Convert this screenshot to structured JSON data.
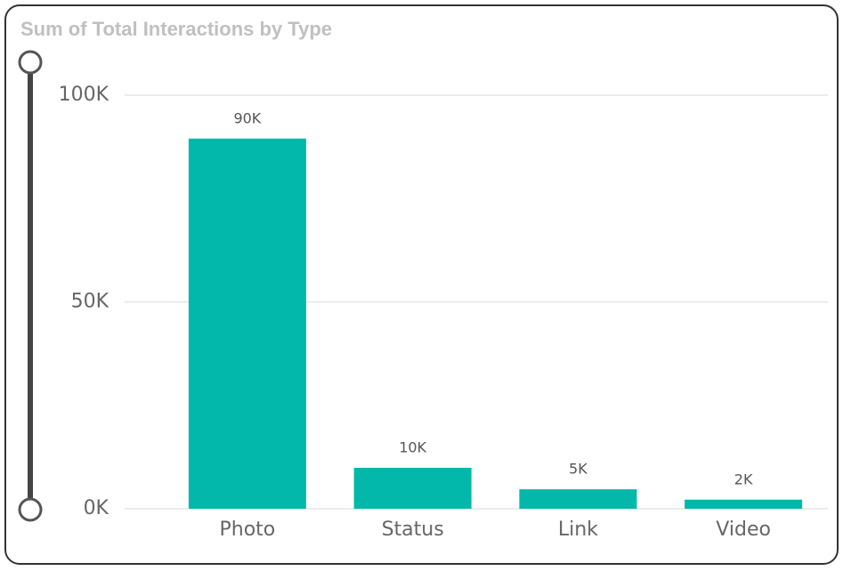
{
  "chart_data": {
    "type": "bar",
    "title": "Sum of Total Interactions by Type",
    "categories": [
      "Photo",
      "Status",
      "Link",
      "Video"
    ],
    "values": [
      89500,
      9900,
      4700,
      2200
    ],
    "value_labels": [
      "90K",
      "10K",
      "5K",
      "2K"
    ],
    "color": "#01b8aa",
    "ylim": [
      0,
      100000
    ],
    "yticks": [
      {
        "value": 0,
        "label": "0K"
      },
      {
        "value": 50000,
        "label": "50K"
      },
      {
        "value": 100000,
        "label": "100K"
      }
    ],
    "grid": true
  }
}
